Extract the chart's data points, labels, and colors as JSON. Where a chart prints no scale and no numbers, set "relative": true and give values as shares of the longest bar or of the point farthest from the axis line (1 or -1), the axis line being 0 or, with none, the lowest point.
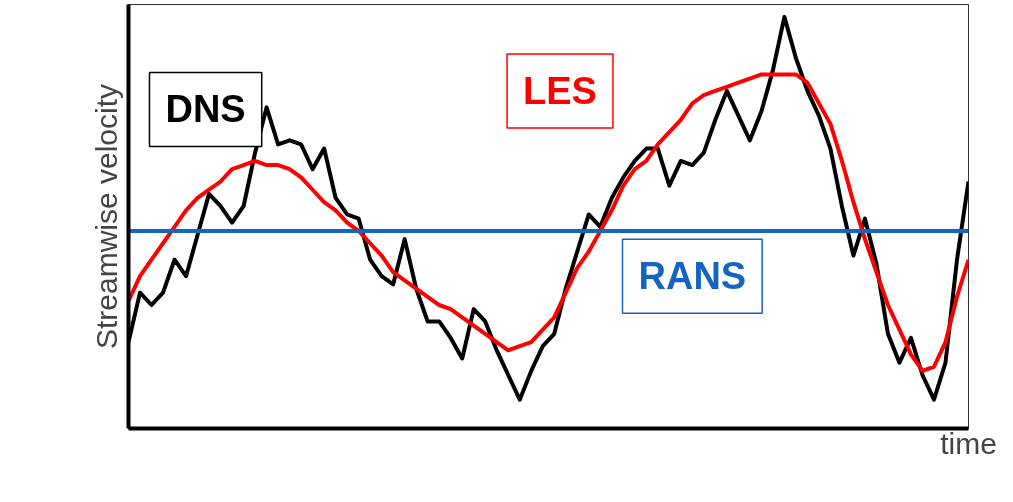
{
  "chart_data": {
    "type": "line",
    "relative": true,
    "xlabel": "time",
    "ylabel": "Streamwise velocity",
    "legend": false,
    "grid": false,
    "categories": [
      null,
      null,
      null,
      null,
      null,
      null,
      null,
      null,
      null,
      null,
      null,
      null,
      null,
      null,
      null,
      null,
      null,
      null,
      null,
      null,
      null,
      null,
      null,
      null,
      null,
      null,
      null,
      null,
      null,
      null,
      null,
      null,
      null,
      null,
      null,
      null,
      null,
      null,
      null,
      null,
      null,
      null,
      null,
      null,
      null,
      null,
      null,
      null,
      null,
      null,
      null,
      null,
      null,
      null,
      null,
      null,
      null,
      null,
      null,
      null,
      null,
      null,
      null,
      null,
      null,
      null,
      null,
      null,
      null,
      null,
      null,
      null,
      null,
      null
    ],
    "series": [
      {
        "name": "DNS",
        "color": "#000000",
        "values": [
          0.21,
          0.33,
          0.3,
          0.33,
          0.41,
          0.37,
          0.47,
          0.57,
          0.54,
          0.5,
          0.54,
          0.67,
          0.78,
          0.69,
          0.7,
          0.69,
          0.63,
          0.68,
          0.56,
          0.52,
          0.51,
          0.41,
          0.37,
          0.35,
          0.46,
          0.34,
          0.26,
          0.26,
          0.22,
          0.17,
          0.29,
          0.26,
          0.19,
          0.13,
          0.07,
          0.14,
          0.2,
          0.23,
          0.34,
          0.43,
          0.52,
          0.49,
          0.56,
          0.61,
          0.65,
          0.68,
          0.68,
          0.59,
          0.65,
          0.64,
          0.67,
          0.75,
          0.82,
          0.76,
          0.7,
          0.77,
          0.87,
          1,
          0.9,
          0.82,
          0.76,
          0.68,
          0.54,
          0.42,
          0.51,
          0.4,
          0.23,
          0.16,
          0.22,
          0.13,
          0.07,
          0.16,
          0.41,
          0.6
        ]
      },
      {
        "name": "LES",
        "color": "#ff0000",
        "values": [
          0.31,
          0.37,
          0.41,
          0.45,
          0.49,
          0.53,
          0.56,
          0.58,
          0.6,
          0.63,
          0.64,
          0.65,
          0.64,
          0.64,
          0.63,
          0.61,
          0.58,
          0.55,
          0.53,
          0.5,
          0.48,
          0.45,
          0.42,
          0.38,
          0.36,
          0.34,
          0.32,
          0.3,
          0.29,
          0.27,
          0.25,
          0.23,
          0.21,
          0.19,
          0.2,
          0.21,
          0.24,
          0.27,
          0.33,
          0.39,
          0.43,
          0.48,
          0.53,
          0.59,
          0.63,
          0.65,
          0.69,
          0.72,
          0.75,
          0.79,
          0.81,
          0.82,
          0.83,
          0.84,
          0.85,
          0.86,
          0.86,
          0.86,
          0.86,
          0.84,
          0.79,
          0.74,
          0.65,
          0.55,
          0.46,
          0.38,
          0.3,
          0.24,
          0.18,
          0.14,
          0.15,
          0.21,
          0.32,
          0.41
        ]
      },
      {
        "name": "RANS",
        "color": "#1565c0",
        "values": [
          0.48,
          0.48,
          0.48,
          0.48,
          0.48,
          0.48,
          0.48,
          0.48,
          0.48,
          0.48,
          0.48,
          0.48,
          0.48,
          0.48,
          0.48,
          0.48,
          0.48,
          0.48,
          0.48,
          0.48,
          0.48,
          0.48,
          0.48,
          0.48,
          0.48,
          0.48,
          0.48,
          0.48,
          0.48,
          0.48,
          0.48,
          0.48,
          0.48,
          0.48,
          0.48,
          0.48,
          0.48,
          0.48,
          0.48,
          0.48,
          0.48,
          0.48,
          0.48,
          0.48,
          0.48,
          0.48,
          0.48,
          0.48,
          0.48,
          0.48,
          0.48,
          0.48,
          0.48,
          0.48,
          0.48,
          0.48,
          0.48,
          0.48,
          0.48,
          0.48,
          0.48,
          0.48,
          0.48,
          0.48,
          0.48,
          0.48,
          0.48,
          0.48,
          0.48,
          0.48,
          0.48,
          0.48,
          0.48,
          0.48
        ]
      }
    ]
  }
}
